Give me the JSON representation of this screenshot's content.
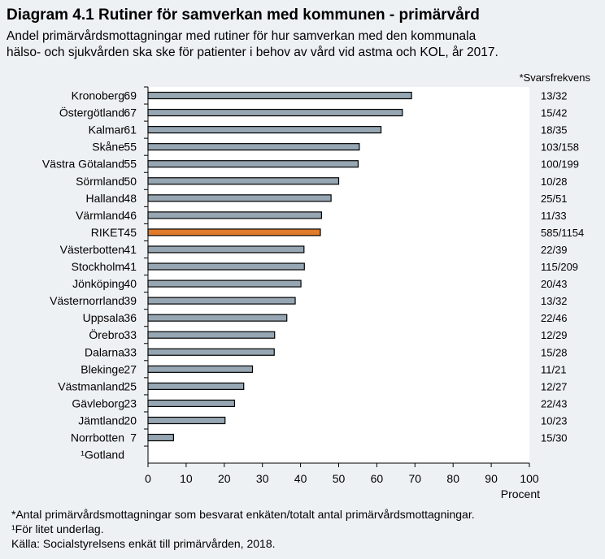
{
  "title": "Diagram 4.1 Rutiner för samverkan med kommunen - primärvård",
  "subtitle_line1": "Andel primärvårdsmottagningar med rutiner för hur samverkan med den kommunala",
  "subtitle_line2": "hälso- och sjukvården ska ske för patienter i behov av vård vid astma och KOL, år 2017.",
  "response_header": "*Svarsfrekvens",
  "footnotes": {
    "note1": "*Antal primärvårdsmottagningar som besvarat enkäten/totalt antal primärvårdsmottagningar.",
    "note2": "¹För litet underlag.",
    "source": "Källa:  Socialstyrelsens enkät till primärvården, 2018."
  },
  "colors": {
    "bar": "#96A6B2",
    "highlight": "#E07B2C",
    "plot_bg": "#FFFFFF",
    "page_bg": "#EEF1F4"
  },
  "chart_data": {
    "type": "bar",
    "orientation": "horizontal",
    "xlabel": "Procent",
    "xlim": [
      0,
      100
    ],
    "xticks": [
      0,
      10,
      20,
      30,
      40,
      50,
      60,
      70,
      80,
      90,
      100
    ],
    "grid": false,
    "categories": [
      "Kronoberg",
      "Östergötland",
      "Kalmar",
      "Skåne",
      "Västra Götaland",
      "Sörmland",
      "Halland",
      "Värmland",
      "RIKET",
      "Västerbotten",
      "Stockholm",
      "Jönköping",
      "Västernorrland",
      "Uppsala",
      "Örebro",
      "Dalarna",
      "Blekinge",
      "Västmanland",
      "Gävleborg",
      "Jämtland",
      "Norrbotten",
      "¹Gotland"
    ],
    "value_labels": [
      "69",
      "67",
      "61",
      "55",
      "55",
      "50",
      "48",
      "46",
      "45",
      "41",
      "41",
      "40",
      "39",
      "36",
      "33",
      "33",
      "27",
      "25",
      "23",
      "20",
      "7",
      ""
    ],
    "values": [
      69.1,
      66.7,
      61.1,
      55.4,
      55.1,
      50.0,
      48.0,
      45.5,
      45.2,
      40.9,
      41.0,
      40.1,
      38.6,
      36.4,
      33.2,
      33.1,
      27.4,
      25.1,
      22.7,
      20.2,
      6.7,
      null
    ],
    "response_rates": [
      "13/32",
      "15/42",
      "18/35",
      "103/158",
      "100/199",
      "10/28",
      "25/51",
      "11/33",
      "585/1154",
      "22/39",
      "115/209",
      "20/43",
      "13/32",
      "22/46",
      "12/29",
      "15/28",
      "11/21",
      "12/27",
      "22/43",
      "10/23",
      "15/30",
      ""
    ],
    "highlight": "RIKET"
  }
}
